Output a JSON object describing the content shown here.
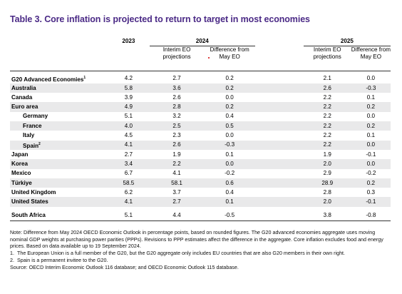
{
  "title": "Table 3. Core inflation is projected to return to target in most economies",
  "header": {
    "year_2023": "2023",
    "year_2024": "2024",
    "year_2025": "2025",
    "col_proj_2024": [
      "Interim EO",
      "projections"
    ],
    "col_diff_2024": [
      "Difference from",
      "May EO"
    ],
    "col_proj_2025": [
      "Interim EO",
      "projections"
    ],
    "col_diff_2025": [
      "Difference from",
      "May EO"
    ]
  },
  "rows": [
    {
      "name": "G20 Advanced Economies",
      "sup": "1",
      "v2023": "4.2",
      "p2024": "2.7",
      "d2024": "0.2",
      "p2025": "2.1",
      "d2025": "0.0"
    },
    {
      "name": "Australia",
      "v2023": "5.8",
      "p2024": "3.6",
      "d2024": "0.2",
      "p2025": "2.6",
      "d2025": "-0.3"
    },
    {
      "name": "Canada",
      "v2023": "3.9",
      "p2024": "2.6",
      "d2024": "0.0",
      "p2025": "2.2",
      "d2025": "0.1"
    },
    {
      "name": "Euro area",
      "v2023": "4.9",
      "p2024": "2.8",
      "d2024": "0.2",
      "p2025": "2.2",
      "d2025": "0.2"
    },
    {
      "name": "Germany",
      "indent": true,
      "v2023": "5.1",
      "p2024": "3.2",
      "d2024": "0.4",
      "p2025": "2.2",
      "d2025": "0.0"
    },
    {
      "name": "France",
      "indent": true,
      "v2023": "4.0",
      "p2024": "2.5",
      "d2024": "0.5",
      "p2025": "2.2",
      "d2025": "0.2"
    },
    {
      "name": "Italy",
      "indent": true,
      "v2023": "4.5",
      "p2024": "2.3",
      "d2024": "0.0",
      "p2025": "2.2",
      "d2025": "0.1"
    },
    {
      "name": "Spain",
      "sup": "2",
      "indent": true,
      "v2023": "4.1",
      "p2024": "2.6",
      "d2024": "-0.3",
      "p2025": "2.2",
      "d2025": "0.0"
    },
    {
      "name": "Japan",
      "v2023": "2.7",
      "p2024": "1.9",
      "d2024": "0.1",
      "p2025": "1.9",
      "d2025": "-0.1"
    },
    {
      "name": "Korea",
      "v2023": "3.4",
      "p2024": "2.2",
      "d2024": "0.0",
      "p2025": "2.0",
      "d2025": "0.0"
    },
    {
      "name": "Mexico",
      "v2023": "6.7",
      "p2024": "4.1",
      "d2024": "-0.2",
      "p2025": "2.9",
      "d2025": "-0.2"
    },
    {
      "name": "Türkiye",
      "v2023": "58.5",
      "p2024": "58.1",
      "d2024": "0.6",
      "p2025": "28.9",
      "d2025": "0.2"
    },
    {
      "name": "United Kingdom",
      "v2023": "6.2",
      "p2024": "3.7",
      "d2024": "0.4",
      "p2025": "2.8",
      "d2025": "0.3"
    },
    {
      "name": "United States",
      "v2023": "4.1",
      "p2024": "2.7",
      "d2024": "0.1",
      "p2025": "2.0",
      "d2025": "-0.1"
    },
    {
      "name": "South Africa",
      "spacer_before": true,
      "v2023": "5.1",
      "p2024": "4.4",
      "d2024": "-0.5",
      "p2025": "3.8",
      "d2025": "-0.8"
    }
  ],
  "notes": {
    "note": "Note: Difference from May 2024 OECD Economic Outlook in percentage points, based on rounded figures. The G20 advanced economies aggregate uses moving nominal GDP weights at purchasing power parities (PPPs). Revisions to PPP estimates affect the difference in the aggregate. Core inflation excludes food and energy prices. Based on data available up to 19 September 2024.",
    "fn1_num": "1.",
    "fn1": "The European Union is a full member of the G20, but the G20 aggregate only includes EU countries that are also G20 members in their own right.",
    "fn2_num": "2.",
    "fn2": "Spain is a permanent invitee to the G20.",
    "source": "Source: OECD Interim Economic Outlook 116 database; and OECD Economic Outlook 115 database."
  },
  "colors": {
    "title": "#4b2a86",
    "stripe": "#e9e9ea",
    "dot": "#d40000"
  }
}
